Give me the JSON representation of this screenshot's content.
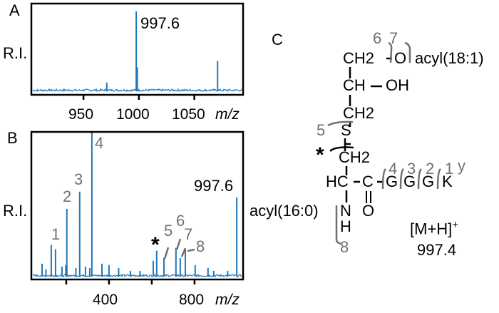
{
  "colors": {
    "spectrum": "#1f78b8",
    "annotation": "#707070",
    "axis": "#000000"
  },
  "chart_data": [
    {
      "panel": "A",
      "type": "line",
      "ylabel": "R.I.",
      "xlabel": "m/z",
      "xlim": [
        903,
        1094
      ],
      "ylim": [
        0,
        100
      ],
      "xticks": [
        "950",
        "1000",
        "1050"
      ],
      "xtick_values": [
        950,
        1000,
        1050
      ],
      "peaks": [
        {
          "mz": 971,
          "ri": 11
        },
        {
          "mz": 997.6,
          "ri": 100,
          "label": "997.6"
        },
        {
          "mz": 998.6,
          "ri": 30
        },
        {
          "mz": 1071,
          "ri": 38
        }
      ]
    },
    {
      "panel": "B",
      "type": "line",
      "ylabel": "R.I.",
      "xlabel": "m/z",
      "xlim": [
        37,
        1027
      ],
      "ylim": [
        0,
        100
      ],
      "xticks": [
        "400",
        "800"
      ],
      "xtick_values": [
        200,
        400,
        600,
        800
      ],
      "peaks": [
        {
          "mz": 87,
          "ri": 9
        },
        {
          "mz": 105,
          "ri": 5
        },
        {
          "mz": 130,
          "ri": 22,
          "label": "1"
        },
        {
          "mz": 150,
          "ri": 19
        },
        {
          "mz": 180,
          "ri": 7
        },
        {
          "mz": 198,
          "ri": 8
        },
        {
          "mz": 203,
          "ri": 47,
          "label": "2"
        },
        {
          "mz": 245,
          "ri": 6
        },
        {
          "mz": 263,
          "ri": 59,
          "label": "3"
        },
        {
          "mz": 290,
          "ri": 7
        },
        {
          "mz": 310,
          "ri": 6
        },
        {
          "mz": 320,
          "ri": 100,
          "label": "4"
        },
        {
          "mz": 367,
          "ri": 9
        },
        {
          "mz": 400,
          "ri": 8
        },
        {
          "mz": 445,
          "ri": 6
        },
        {
          "mz": 500,
          "ri": 4
        },
        {
          "mz": 545,
          "ri": 4
        },
        {
          "mz": 607,
          "ri": 11
        },
        {
          "mz": 623,
          "ri": 18,
          "label": "*"
        },
        {
          "mz": 657,
          "ri": 13,
          "label": "5"
        },
        {
          "mz": 713,
          "ri": 20,
          "label": "6"
        },
        {
          "mz": 733,
          "ri": 13,
          "label": "7"
        },
        {
          "mz": 757,
          "ri": 19,
          "label": "8"
        },
        {
          "mz": 803,
          "ri": 8
        },
        {
          "mz": 863,
          "ri": 6
        },
        {
          "mz": 890,
          "ri": 4
        },
        {
          "mz": 955,
          "ri": 4
        },
        {
          "mz": 997.6,
          "ri": 55,
          "label": "997.6"
        }
      ]
    }
  ],
  "panels": {
    "a": {
      "letter": "A",
      "ylabel": "R.I.",
      "peak_label": "997.6",
      "ticks": [
        "950",
        "1000",
        "1050"
      ],
      "xlabel": "m/z"
    },
    "b": {
      "letter": "B",
      "ylabel": "R.I.",
      "peak_label": "997.6",
      "ticks": [
        "400",
        "800"
      ],
      "xlabel": "m/z",
      "fragments": [
        "1",
        "2",
        "3",
        "4",
        "5",
        "6",
        "7",
        "8"
      ],
      "star": "*"
    },
    "c": {
      "letter": "C",
      "ch2_top": "CH2",
      "o": "O",
      "acyl_top": "acyl(18:1)",
      "ch": "CH",
      "oh": "OH",
      "ch2_mid": "CH2",
      "s": "S",
      "ch2_low": "CH2",
      "hc": "HC",
      "c": "C",
      "g1": "G",
      "g2": "G",
      "g3": "G",
      "k": "K",
      "acyl_low": "acyl(16:0)",
      "n": "N",
      "h": "H",
      "o_carbonyl": "O",
      "frag_labels": {
        "f1": "1",
        "f2": "2",
        "f3": "3",
        "f4": "4",
        "f5": "5",
        "f6": "6",
        "f7": "7",
        "f8": "8",
        "y": "y",
        "star": "*"
      },
      "ion": "[M+H]",
      "charge": "+",
      "mass": "997.4"
    }
  }
}
